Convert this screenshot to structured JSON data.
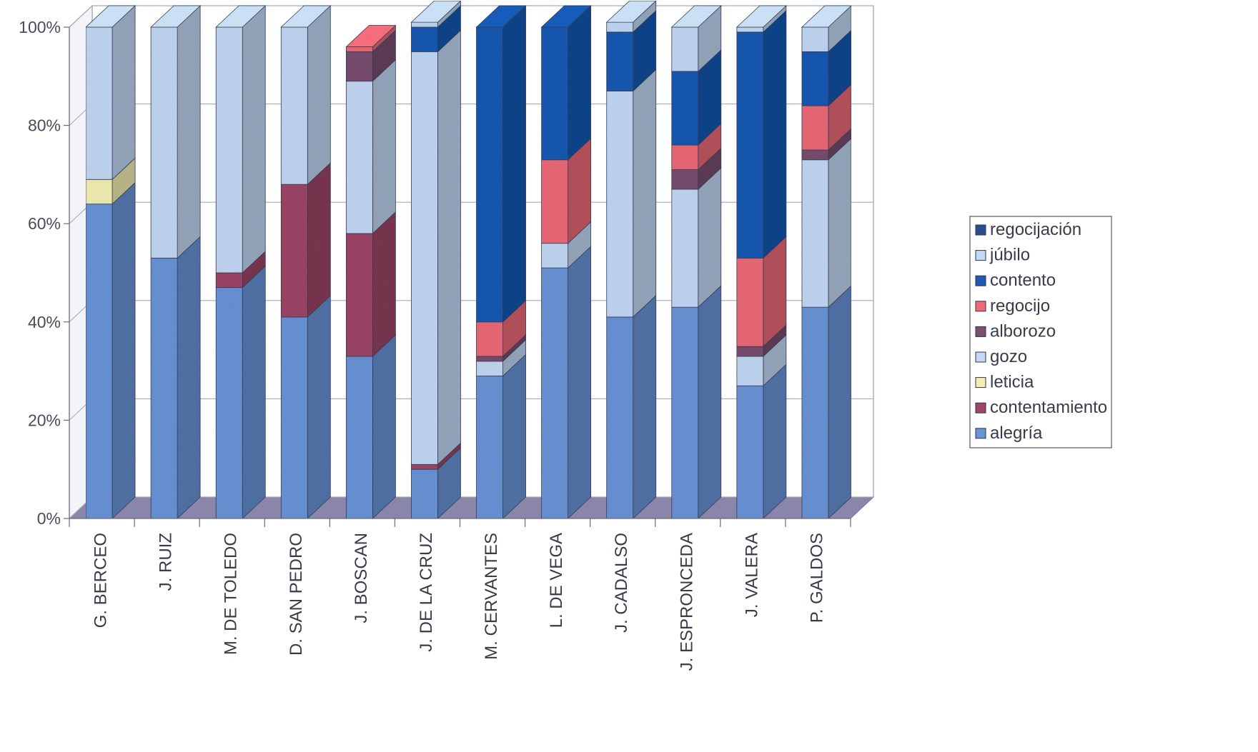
{
  "chart_data": {
    "type": "bar",
    "stacked": true,
    "percent_stacked": true,
    "three_d": true,
    "title": "",
    "xlabel": "",
    "ylabel": "",
    "ylim": [
      0,
      100
    ],
    "y_ticks": [
      "0%",
      "20%",
      "40%",
      "60%",
      "80%",
      "100%"
    ],
    "legend_position": "right",
    "grid": true,
    "categories": [
      "G. BERCEO",
      "J. RUIZ",
      "M. DE TOLEDO",
      "D. SAN PEDRO",
      "J. BOSCAN",
      "J. DE LA CRUZ",
      "M. CERVANTES",
      "L. DE VEGA",
      "J. CADALSO",
      "J. ESPRONCEDA",
      "J. VALERA",
      "P. GALDOS"
    ],
    "series": [
      {
        "name": "alegría",
        "color": "#6a94d8",
        "values": [
          64,
          53,
          47,
          41,
          33,
          10,
          29,
          51,
          41,
          43,
          27,
          43
        ]
      },
      {
        "name": "contentamiento",
        "color": "#9e4668",
        "values": [
          0,
          0,
          3,
          27,
          25,
          1,
          0,
          0,
          0,
          0,
          0,
          0
        ]
      },
      {
        "name": "leticia",
        "color": "#f3efb4",
        "values": [
          5,
          0,
          0,
          0,
          0,
          0,
          0,
          0,
          0,
          0,
          0,
          0
        ]
      },
      {
        "name": "gozo",
        "color": "#c2d8f4",
        "values": [
          31,
          47,
          50,
          32,
          31,
          84,
          3,
          5,
          46,
          24,
          6,
          30
        ]
      },
      {
        "name": "alborozo",
        "color": "#7a5070",
        "values": [
          0,
          0,
          0,
          0,
          6,
          0,
          1,
          0,
          0,
          4,
          2,
          2
        ]
      },
      {
        "name": "regocijo",
        "color": "#ec6a78",
        "values": [
          0,
          0,
          0,
          0,
          1,
          0,
          7,
          17,
          0,
          5,
          18,
          9
        ]
      },
      {
        "name": "contento",
        "color": "#1c5ab4",
        "values": [
          0,
          0,
          0,
          0,
          0,
          5,
          60,
          27,
          12,
          15,
          46,
          11
        ]
      },
      {
        "name": "júbilo",
        "color": "#c2d8f4",
        "values": [
          0,
          0,
          0,
          0,
          0,
          1,
          0,
          0,
          2,
          9,
          1,
          5
        ]
      },
      {
        "name": "regocijación",
        "color": "#2c4c90",
        "values": [
          0,
          0,
          0,
          0,
          0,
          0,
          0,
          0,
          0,
          0,
          0,
          0
        ]
      }
    ],
    "legend_order": [
      "regocijación",
      "júbilo",
      "contento",
      "regocijo",
      "alborozo",
      "gozo",
      "leticia",
      "contentamiento",
      "alegría"
    ]
  }
}
